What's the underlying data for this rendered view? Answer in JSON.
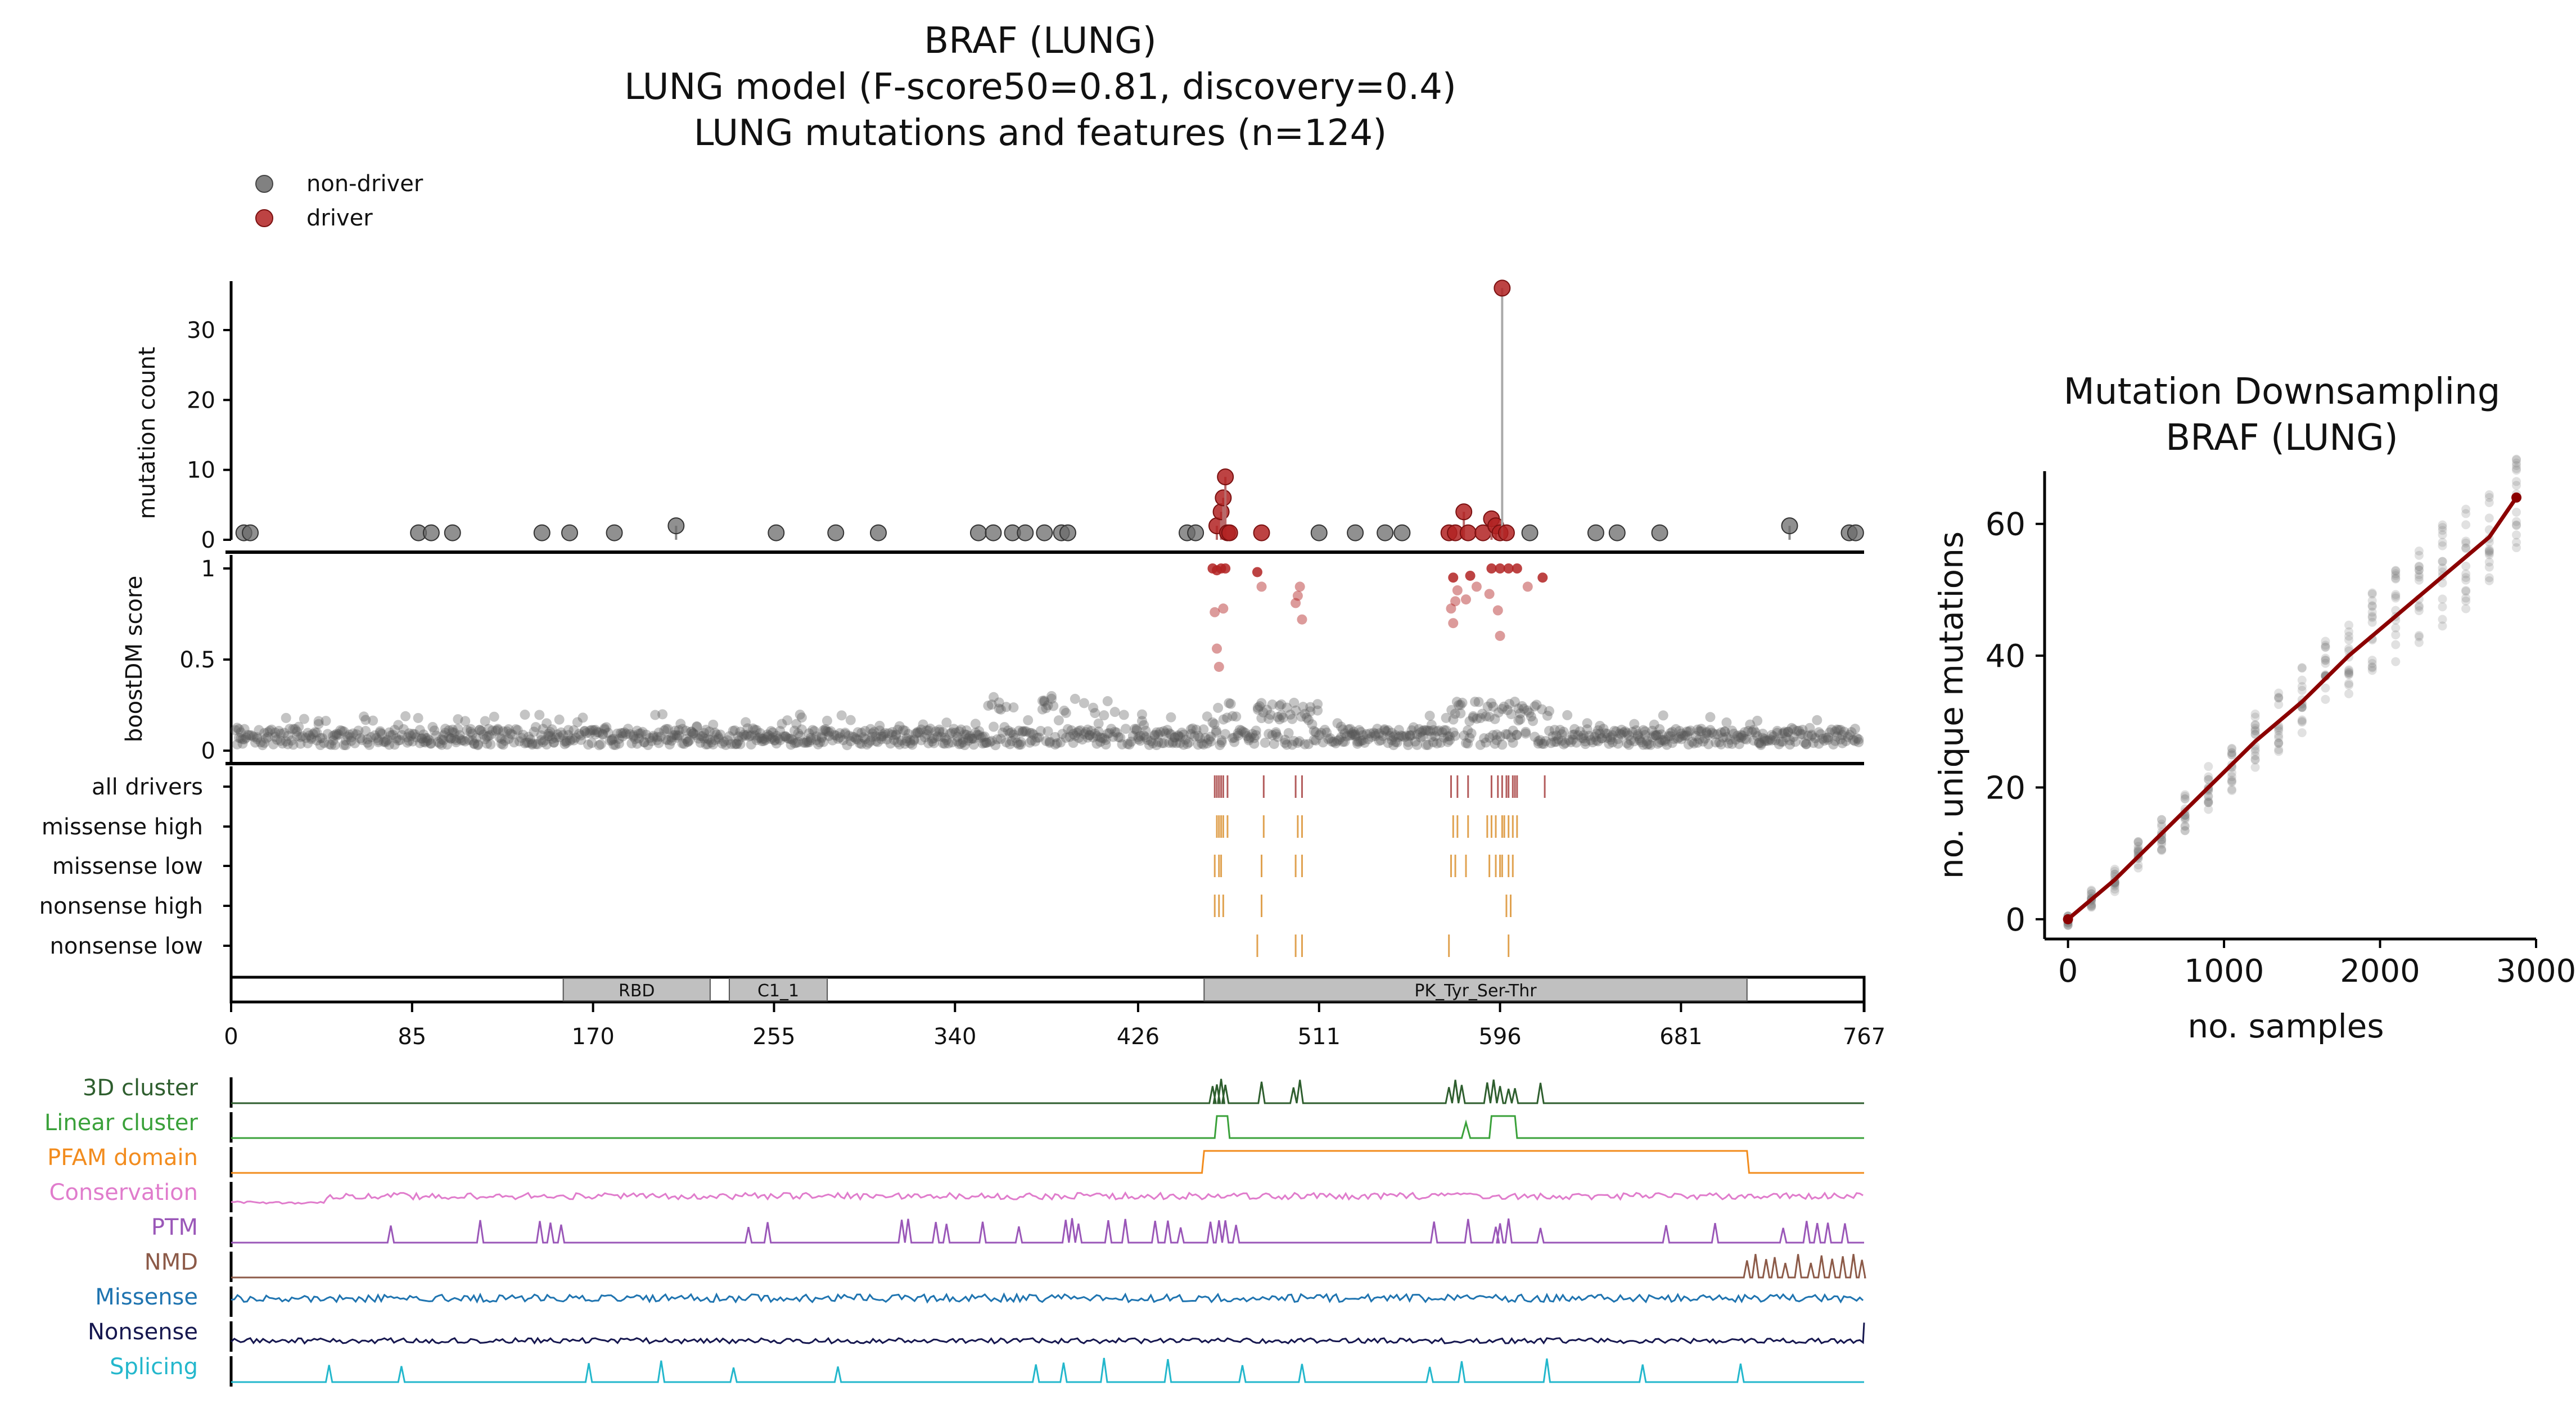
{
  "figure": {
    "title_lines": [
      "BRAF (LUNG)",
      "LUNG model (F-score50=0.81, discovery=0.4)",
      "LUNG mutations and features (n=124)"
    ],
    "legend": [
      {
        "label": "non-driver",
        "color": "#6b6b6b"
      },
      {
        "label": "driver",
        "color": "#b22222"
      }
    ]
  },
  "chart_data": [
    {
      "type": "scatter",
      "name": "mutation-count-lollipop",
      "ylabel": "mutation count",
      "xlim": [
        0,
        767
      ],
      "ylim": [
        0,
        37
      ],
      "yticks": [
        0,
        10,
        20,
        30
      ],
      "non_driver": [
        [
          6,
          1
        ],
        [
          9,
          1
        ],
        [
          88,
          1
        ],
        [
          94,
          1
        ],
        [
          104,
          1
        ],
        [
          146,
          1
        ],
        [
          159,
          1
        ],
        [
          180,
          1
        ],
        [
          209,
          2
        ],
        [
          256,
          1
        ],
        [
          284,
          1
        ],
        [
          304,
          1
        ],
        [
          351,
          1
        ],
        [
          358,
          1
        ],
        [
          367,
          1
        ],
        [
          373,
          1
        ],
        [
          382,
          1
        ],
        [
          390,
          1
        ],
        [
          393,
          1
        ],
        [
          449,
          1
        ],
        [
          453,
          1
        ],
        [
          511,
          1
        ],
        [
          528,
          1
        ],
        [
          542,
          1
        ],
        [
          550,
          1
        ],
        [
          610,
          1
        ],
        [
          641,
          1
        ],
        [
          651,
          1
        ],
        [
          671,
          1
        ],
        [
          732,
          2
        ],
        [
          760,
          1
        ],
        [
          763,
          1
        ]
      ],
      "driver": [
        [
          463,
          2
        ],
        [
          465,
          4
        ],
        [
          466,
          6
        ],
        [
          467,
          9
        ],
        [
          468,
          1
        ],
        [
          469,
          1
        ],
        [
          484,
          1
        ],
        [
          572,
          1
        ],
        [
          575,
          1
        ],
        [
          579,
          4
        ],
        [
          581,
          1
        ],
        [
          588,
          1
        ],
        [
          592,
          3
        ],
        [
          594,
          2
        ],
        [
          596,
          1
        ],
        [
          597,
          36
        ],
        [
          599,
          1
        ]
      ]
    },
    {
      "type": "scatter",
      "name": "boostdm-score",
      "ylabel": "boostDM score",
      "xlim": [
        0,
        767
      ],
      "ylim": [
        0,
        1.05
      ],
      "yticks": [
        0,
        0.5,
        1
      ],
      "yticklabels": [
        "0",
        "0.5",
        "1"
      ],
      "high_scores": [
        [
          461,
          1.0
        ],
        [
          463,
          0.99
        ],
        [
          465,
          1.0
        ],
        [
          467,
          1.0
        ],
        [
          462,
          0.76
        ],
        [
          466,
          0.78
        ],
        [
          463,
          0.56
        ],
        [
          464,
          0.46
        ],
        [
          482,
          0.98
        ],
        [
          484,
          0.9
        ],
        [
          502,
          0.9
        ],
        [
          501,
          0.85
        ],
        [
          500,
          0.81
        ],
        [
          503,
          0.72
        ],
        [
          574,
          0.95
        ],
        [
          576,
          0.88
        ],
        [
          575,
          0.82
        ],
        [
          573,
          0.78
        ],
        [
          574,
          0.7
        ],
        [
          582,
          0.96
        ],
        [
          585,
          0.9
        ],
        [
          580,
          0.83
        ],
        [
          592,
          1.0
        ],
        [
          596,
          1.0
        ],
        [
          600,
          1.0
        ],
        [
          604,
          1.0
        ],
        [
          595,
          0.77
        ],
        [
          596,
          0.63
        ],
        [
          591,
          0.86
        ],
        [
          616,
          0.95
        ],
        [
          609,
          0.9
        ]
      ]
    },
    {
      "type": "table",
      "name": "driver-tracks",
      "rows": [
        "all drivers",
        "missense high",
        "missense low",
        "nonsense high",
        "nonsense low"
      ],
      "positions": [
        [
          462,
          463,
          464,
          465,
          466,
          468,
          485,
          500,
          503,
          573,
          576,
          581,
          592,
          595,
          597,
          599,
          600,
          602,
          603,
          604,
          617
        ],
        [
          463,
          464,
          465,
          466,
          468,
          485,
          501,
          503,
          574,
          576,
          581,
          590,
          592,
          594,
          597,
          598,
          600,
          602,
          604
        ],
        [
          462,
          464,
          465,
          484,
          500,
          503,
          573,
          575,
          580,
          591,
          594,
          596,
          597,
          600,
          602
        ],
        [
          462,
          464,
          466,
          484,
          599,
          601
        ],
        [
          482,
          500,
          503,
          572,
          600
        ]
      ]
    },
    {
      "type": "bar",
      "name": "protein-domains",
      "xlim": [
        0,
        767
      ],
      "xticks": [
        0,
        85,
        170,
        255,
        340,
        426,
        511,
        596,
        681,
        767
      ],
      "domains": [
        {
          "label": "RBD",
          "start": 156,
          "end": 225
        },
        {
          "label": "C1_1",
          "start": 234,
          "end": 280
        },
        {
          "label": "PK_Tyr_Ser-Thr",
          "start": 457,
          "end": 712
        }
      ]
    },
    {
      "type": "line",
      "name": "feature-tracks",
      "xlim": [
        0,
        767
      ],
      "series": [
        {
          "name": "3D cluster",
          "color": "#2e5e2e",
          "kind": "peaks",
          "positions": [
            461,
            463,
            465,
            467,
            484,
            499,
            502,
            572,
            575,
            578,
            590,
            593,
            596,
            600,
            603,
            615
          ]
        },
        {
          "name": "Linear cluster",
          "color": "#3aa13a",
          "kind": "box",
          "ranges": [
            [
              463,
              468
            ],
            [
              592,
              603
            ]
          ],
          "positions": [
            580
          ]
        },
        {
          "name": "PFAM domain",
          "color": "#f28c1e",
          "kind": "box",
          "ranges": [
            [
              457,
              712
            ]
          ]
        },
        {
          "name": "Conservation",
          "color": "#e07ccc",
          "kind": "noise",
          "base": 0.45,
          "amp": 0.25
        },
        {
          "name": "PTM",
          "color": "#9a57b8",
          "kind": "peaks",
          "positions": [
            75,
            117,
            145,
            150,
            155,
            243,
            252,
            315,
            318,
            331,
            336,
            353,
            370,
            392,
            395,
            398,
            412,
            420,
            434,
            440,
            446,
            460,
            464,
            467,
            472,
            565,
            581,
            594,
            596,
            600,
            615,
            674,
            697,
            729,
            740,
            745,
            750,
            758
          ]
        },
        {
          "name": "NMD",
          "color": "#8c5a48",
          "kind": "peaks",
          "positions": [
            712,
            716,
            721,
            725,
            730,
            736,
            742,
            747,
            752,
            757,
            762,
            766
          ]
        },
        {
          "name": "Missense",
          "color": "#1f74b0",
          "kind": "noise",
          "base": 0.55,
          "amp": 0.3
        },
        {
          "name": "Nonsense",
          "color": "#16174f",
          "kind": "noise",
          "base": 0.25,
          "amp": 0.2
        },
        {
          "name": "Splicing",
          "color": "#23b7cc",
          "kind": "peaks",
          "positions": [
            46,
            80,
            168,
            202,
            236,
            285,
            378,
            391,
            410,
            440,
            475,
            503,
            563,
            578,
            618,
            663,
            709
          ]
        }
      ]
    },
    {
      "type": "scatter",
      "name": "mutation-downsampling",
      "title": "Mutation Downsampling\nBRAF (LUNG)",
      "xlabel": "no. samples",
      "ylabel": "no. unique mutations",
      "xlim": [
        -150,
        3000
      ],
      "ylim": [
        -3,
        68
      ],
      "xticks": [
        0,
        1000,
        2000,
        3000
      ],
      "yticks": [
        0,
        20,
        40,
        60
      ],
      "fit_line": [
        [
          0,
          0
        ],
        [
          300,
          6
        ],
        [
          600,
          13
        ],
        [
          900,
          20
        ],
        [
          1200,
          27
        ],
        [
          1500,
          33
        ],
        [
          1800,
          40
        ],
        [
          2100,
          46
        ],
        [
          2400,
          52
        ],
        [
          2700,
          58
        ],
        [
          2874,
          64
        ]
      ],
      "fit_color": "#8b0000",
      "sample_x": [
        0,
        150,
        300,
        450,
        600,
        750,
        900,
        1050,
        1200,
        1350,
        1500,
        1650,
        1800,
        1950,
        2100,
        2250,
        2400,
        2550,
        2700,
        2874
      ]
    }
  ]
}
